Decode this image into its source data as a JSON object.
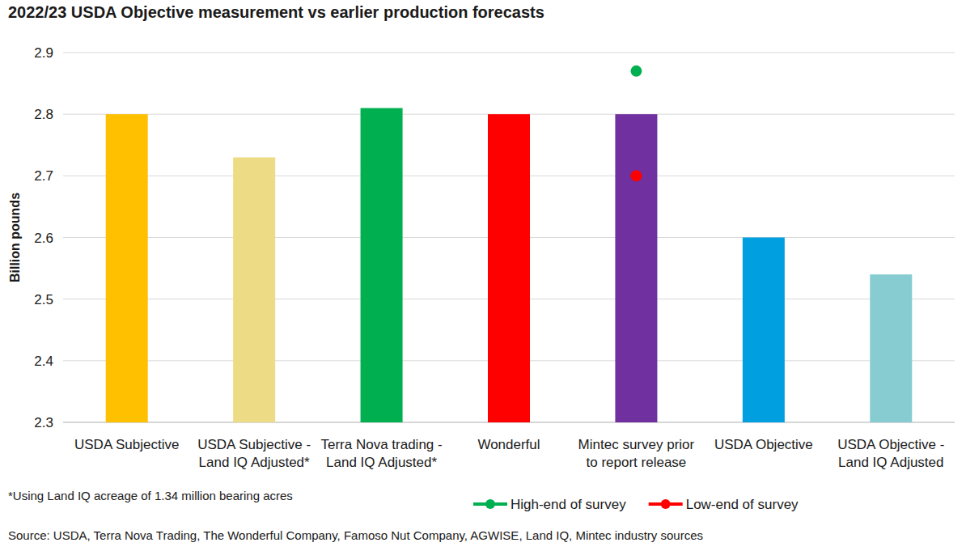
{
  "chart_data": {
    "type": "bar",
    "title": "2022/23 USDA Objective measurement vs earlier production forecasts",
    "y_label": "Billion pounds",
    "categories": [
      "USDA Subjective",
      "USDA Subjective - Land IQ Adjusted*",
      "Terra Nova trading - Land IQ Adjusted*",
      "Wonderful",
      "Mintec survey prior to report release",
      "USDA Objective",
      "USDA Objective - Land IQ Adjusted"
    ],
    "values": [
      2.8,
      2.73,
      2.81,
      2.8,
      2.8,
      2.6,
      2.54
    ],
    "colors": [
      "#FFC000",
      "#EEDB86",
      "#00B050",
      "#FF0000",
      "#7030A0",
      "#00A0E0",
      "#86CCD0"
    ],
    "series": [
      {
        "name": "High-end of survey",
        "type": "scatter",
        "marker": "circle",
        "color": "#00B050",
        "values": [
          null,
          null,
          null,
          null,
          2.87,
          null,
          null
        ]
      },
      {
        "name": "Low-end of survey",
        "type": "scatter",
        "marker": "circle",
        "color": "#FF0000",
        "values": [
          null,
          null,
          null,
          null,
          2.7,
          null,
          null
        ]
      }
    ],
    "ylim": [
      2.3,
      2.9
    ],
    "yticks": [
      2.3,
      2.4,
      2.5,
      2.6,
      2.7,
      2.8,
      2.9
    ],
    "grid": true,
    "legend": "bottom",
    "footnote": "*Using Land IQ acreage of 1.34 million bearing acres",
    "source": "Source: USDA, Terra Nova Trading, The Wonderful Company, Famoso Nut Company, AGWISE, Land IQ, Mintec industry sources"
  }
}
